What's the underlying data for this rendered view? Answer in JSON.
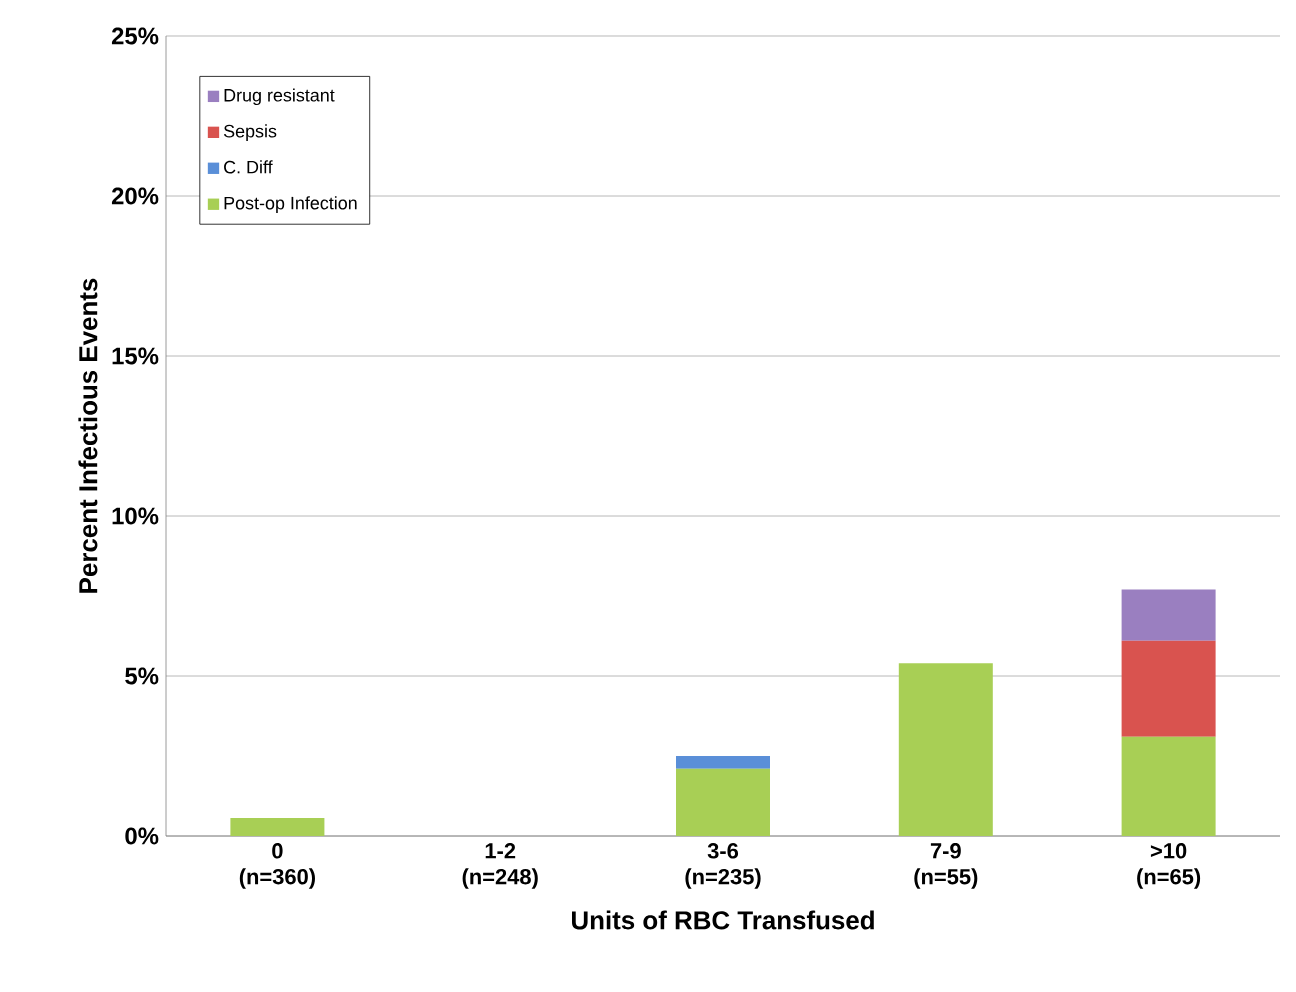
{
  "chart_data": {
    "type": "bar",
    "stacked": true,
    "xlabel": "Units of RBC Transfused",
    "ylabel": "Percent Infectious Events",
    "categories": [
      "0 (n=360)",
      "1-2 (n=248)",
      "3-6 (n=235)",
      "7-9 (n=55)",
      ">10 (n=65)"
    ],
    "series": [
      {
        "name": "Post-op Infection",
        "color": "#a8cf55",
        "values": [
          0.56,
          0,
          2.1,
          5.4,
          3.1
        ]
      },
      {
        "name": "C. Diff",
        "color": "#5a8fd8",
        "values": [
          0,
          0,
          0.4,
          0,
          0
        ]
      },
      {
        "name": "Sepsis",
        "color": "#d9534f",
        "values": [
          0,
          0,
          0,
          0,
          3.0
        ]
      },
      {
        "name": "Drug resistant",
        "color": "#9a7fc0",
        "values": [
          0,
          0,
          0,
          0,
          1.6
        ]
      }
    ],
    "ylim": [
      0,
      25
    ],
    "yticks": [
      {
        "value": 0,
        "label": "0%"
      },
      {
        "value": 5,
        "label": "5%"
      },
      {
        "value": 10,
        "label": "10%"
      },
      {
        "value": 15,
        "label": "15%"
      },
      {
        "value": 20,
        "label": "20%"
      },
      {
        "value": 25,
        "label": "25%"
      }
    ],
    "grid": "y",
    "legend": "top left"
  }
}
